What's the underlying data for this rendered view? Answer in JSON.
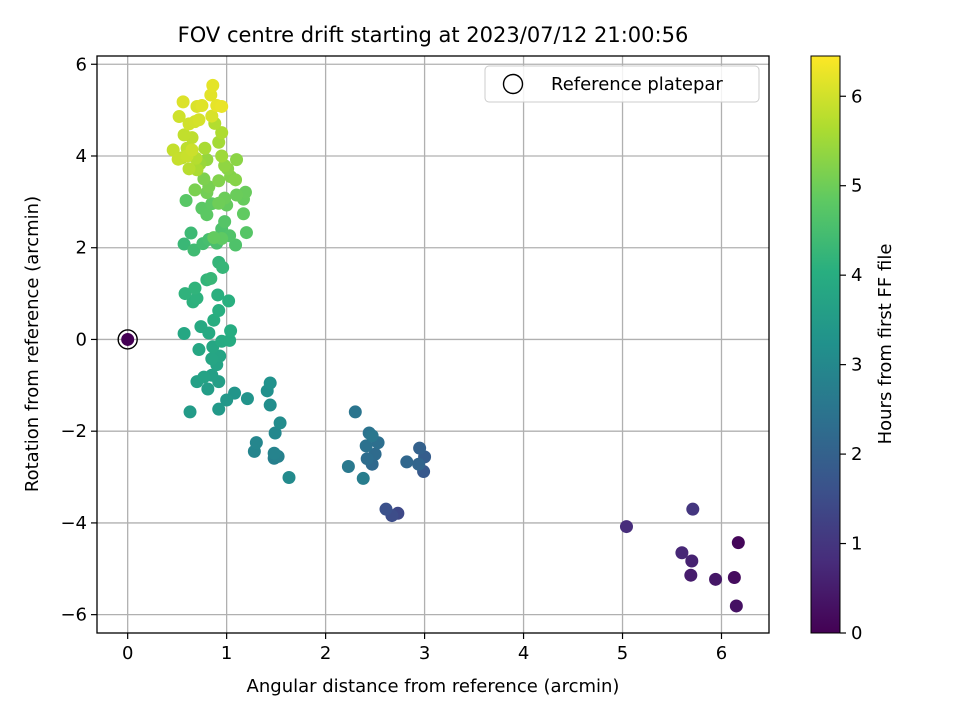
{
  "chart_data": {
    "type": "scatter",
    "title": "FOV centre drift starting at 2023/07/12 21:00:56",
    "xlabel": "Angular distance from reference (arcmin)",
    "ylabel": "Rotation from reference (arcmin)",
    "xlim": [
      -0.31,
      6.48
    ],
    "ylim": [
      -6.4,
      6.18
    ],
    "xticks": [
      0,
      1,
      2,
      3,
      4,
      5,
      6
    ],
    "yticks": [
      -6,
      -4,
      -2,
      0,
      2,
      4,
      6
    ],
    "grid": true,
    "legend": {
      "position": "top-right",
      "entries": [
        "Reference platepar"
      ]
    },
    "colorbar": {
      "label": "Hours from first FF file",
      "range": [
        0,
        6.45
      ],
      "ticks": [
        0,
        1,
        2,
        3,
        4,
        5,
        6
      ],
      "colormap": "viridis"
    },
    "reference": {
      "x": 0,
      "y": 0,
      "c": 0
    },
    "points": [
      [
        6.17,
        -4.43,
        0.1
      ],
      [
        6.13,
        -5.19,
        0.2
      ],
      [
        6.15,
        -5.81,
        0.3
      ],
      [
        5.94,
        -5.23,
        0.4
      ],
      [
        5.69,
        -5.14,
        0.5
      ],
      [
        5.7,
        -4.83,
        0.6
      ],
      [
        5.6,
        -4.65,
        0.7
      ],
      [
        5.04,
        -4.08,
        0.8
      ],
      [
        5.71,
        -3.7,
        1.0
      ],
      [
        2.73,
        -3.79,
        1.4
      ],
      [
        2.67,
        -3.84,
        1.5
      ],
      [
        2.61,
        -3.7,
        1.6
      ],
      [
        2.99,
        -2.88,
        1.8
      ],
      [
        3.0,
        -2.56,
        1.9
      ],
      [
        2.95,
        -2.37,
        2.0
      ],
      [
        2.94,
        -2.72,
        2.1
      ],
      [
        2.82,
        -2.67,
        2.15
      ],
      [
        2.47,
        -2.72,
        2.2
      ],
      [
        2.5,
        -2.5,
        2.25
      ],
      [
        2.42,
        -2.6,
        2.3
      ],
      [
        2.53,
        -2.25,
        2.35
      ],
      [
        2.41,
        -2.32,
        2.4
      ],
      [
        2.44,
        -2.04,
        2.45
      ],
      [
        2.3,
        -1.58,
        2.5
      ],
      [
        2.47,
        -2.1,
        2.55
      ],
      [
        2.23,
        -2.77,
        2.6
      ],
      [
        2.38,
        -3.03,
        2.7
      ],
      [
        1.48,
        -2.59,
        2.75
      ],
      [
        1.52,
        -2.55,
        2.8
      ],
      [
        1.48,
        -2.48,
        2.85
      ],
      [
        1.28,
        -2.44,
        2.9
      ],
      [
        1.3,
        -2.25,
        2.95
      ],
      [
        1.49,
        -2.04,
        3.0
      ],
      [
        1.63,
        -3.01,
        3.05
      ],
      [
        1.54,
        -1.82,
        3.1
      ],
      [
        1.44,
        -1.43,
        3.15
      ],
      [
        1.41,
        -1.12,
        3.2
      ],
      [
        1.44,
        -0.95,
        3.25
      ],
      [
        1.21,
        -1.29,
        3.3
      ],
      [
        1.08,
        -1.17,
        3.35
      ],
      [
        1.0,
        -1.32,
        3.4
      ],
      [
        0.92,
        -1.52,
        3.45
      ],
      [
        0.63,
        -1.58,
        3.5
      ],
      [
        0.81,
        -1.08,
        3.55
      ],
      [
        0.92,
        -0.92,
        3.6
      ],
      [
        0.85,
        -0.78,
        3.62
      ],
      [
        0.7,
        -0.92,
        3.65
      ],
      [
        0.77,
        -0.82,
        3.7
      ],
      [
        0.9,
        -0.55,
        3.72
      ],
      [
        0.93,
        -0.36,
        3.75
      ],
      [
        0.85,
        -0.42,
        3.78
      ],
      [
        0.72,
        -0.22,
        3.8
      ],
      [
        0.86,
        -0.16,
        3.82
      ],
      [
        0.57,
        0.13,
        3.85
      ],
      [
        0.74,
        0.28,
        3.88
      ],
      [
        0.82,
        0.14,
        3.9
      ],
      [
        0.95,
        -0.04,
        3.92
      ],
      [
        1.03,
        -0.02,
        3.95
      ],
      [
        1.04,
        0.19,
        3.97
      ],
      [
        0.87,
        0.42,
        4.0
      ],
      [
        0.92,
        0.63,
        4.02
      ],
      [
        1.02,
        0.84,
        4.05
      ],
      [
        0.91,
        0.97,
        4.07
      ],
      [
        0.66,
        0.82,
        4.1
      ],
      [
        0.7,
        0.9,
        4.12
      ],
      [
        0.58,
        1.0,
        4.15
      ],
      [
        0.68,
        1.12,
        4.17
      ],
      [
        0.8,
        1.3,
        4.2
      ],
      [
        0.92,
        1.68,
        4.22
      ],
      [
        0.96,
        1.57,
        4.25
      ],
      [
        0.84,
        1.33,
        4.27
      ],
      [
        0.57,
        2.08,
        4.3
      ],
      [
        0.64,
        2.32,
        4.35
      ],
      [
        0.67,
        1.95,
        4.4
      ],
      [
        0.76,
        2.09,
        4.45
      ],
      [
        0.82,
        2.18,
        4.5
      ],
      [
        0.9,
        2.1,
        4.55
      ],
      [
        0.95,
        2.41,
        4.6
      ],
      [
        1.09,
        2.06,
        4.62
      ],
      [
        1.03,
        2.26,
        4.65
      ],
      [
        0.98,
        2.57,
        4.7
      ],
      [
        1.2,
        2.33,
        4.72
      ],
      [
        0.59,
        3.03,
        4.75
      ],
      [
        0.75,
        2.86,
        4.78
      ],
      [
        0.8,
        2.72,
        4.8
      ],
      [
        0.85,
        2.96,
        4.82
      ],
      [
        0.95,
        2.2,
        4.84
      ],
      [
        1.17,
        2.74,
        4.86
      ],
      [
        0.87,
        2.22,
        4.88
      ],
      [
        1.0,
        2.93,
        4.9
      ],
      [
        1.17,
        3.06,
        4.92
      ],
      [
        1.19,
        3.21,
        4.94
      ],
      [
        1.1,
        3.15,
        4.96
      ],
      [
        0.98,
        3.08,
        4.98
      ],
      [
        0.92,
        2.97,
        5.0
      ],
      [
        0.8,
        3.2,
        5.05
      ],
      [
        0.82,
        3.33,
        5.1
      ],
      [
        0.68,
        3.26,
        5.12
      ],
      [
        0.77,
        3.5,
        5.15
      ],
      [
        0.92,
        3.46,
        5.2
      ],
      [
        1.04,
        3.55,
        5.22
      ],
      [
        1.09,
        3.48,
        5.25
      ],
      [
        1.01,
        3.72,
        5.28
      ],
      [
        1.1,
        3.92,
        5.3
      ],
      [
        0.98,
        3.79,
        5.35
      ],
      [
        0.8,
        3.92,
        5.4
      ],
      [
        0.73,
        3.83,
        5.45
      ],
      [
        0.95,
        4.0,
        5.5
      ],
      [
        0.92,
        4.3,
        5.55
      ],
      [
        0.78,
        4.17,
        5.6
      ],
      [
        0.7,
        3.7,
        5.62
      ],
      [
        0.95,
        4.51,
        5.65
      ],
      [
        0.88,
        4.71,
        5.7
      ],
      [
        0.69,
        3.95,
        5.72
      ],
      [
        0.62,
        3.72,
        5.75
      ],
      [
        0.55,
        3.96,
        5.78
      ],
      [
        0.6,
        4.17,
        5.8
      ],
      [
        0.65,
        4.4,
        5.82
      ],
      [
        0.57,
        4.46,
        5.85
      ],
      [
        0.46,
        4.13,
        5.88
      ],
      [
        0.51,
        3.93,
        5.9
      ],
      [
        0.6,
        4.0,
        5.92
      ],
      [
        0.65,
        4.13,
        5.95
      ],
      [
        0.52,
        4.86,
        5.98
      ],
      [
        0.62,
        4.7,
        6.0
      ],
      [
        0.68,
        4.75,
        6.02
      ],
      [
        0.72,
        4.79,
        6.05
      ],
      [
        0.85,
        4.87,
        6.08
      ],
      [
        0.7,
        5.08,
        6.1
      ],
      [
        0.56,
        5.18,
        6.12
      ],
      [
        0.75,
        5.1,
        6.15
      ],
      [
        0.84,
        5.33,
        6.18
      ],
      [
        0.86,
        5.54,
        6.2
      ],
      [
        0.9,
        5.1,
        6.22
      ],
      [
        0.95,
        5.08,
        6.25
      ]
    ]
  }
}
